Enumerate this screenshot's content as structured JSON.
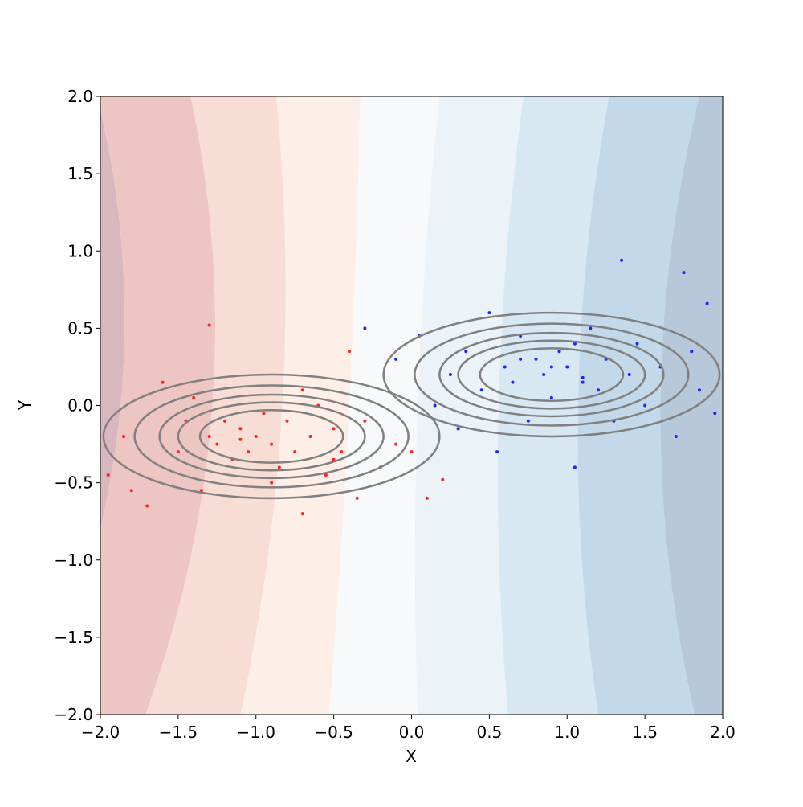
{
  "chart_data": {
    "type": "scatter",
    "xlabel": "X",
    "ylabel": "Y",
    "xlim": [
      -2.0,
      2.0
    ],
    "ylim": [
      -2.0,
      2.0
    ],
    "xticks": [
      {
        "value": -2.0,
        "label": "−2.0"
      },
      {
        "value": -1.5,
        "label": "−1.5"
      },
      {
        "value": -1.0,
        "label": "−1.0"
      },
      {
        "value": -0.5,
        "label": "−0.5"
      },
      {
        "value": 0.0,
        "label": "0.0"
      },
      {
        "value": 0.5,
        "label": "0.5"
      },
      {
        "value": 1.0,
        "label": "1.0"
      },
      {
        "value": 1.5,
        "label": "1.5"
      },
      {
        "value": 2.0,
        "label": "2.0"
      }
    ],
    "yticks": [
      {
        "value": -2.0,
        "label": "−2.0"
      },
      {
        "value": -1.5,
        "label": "−1.5"
      },
      {
        "value": -1.0,
        "label": "−1.0"
      },
      {
        "value": -0.5,
        "label": "−0.5"
      },
      {
        "value": 0.0,
        "label": "0.0"
      },
      {
        "value": 0.5,
        "label": "0.5"
      },
      {
        "value": 1.0,
        "label": "1.0"
      },
      {
        "value": 1.5,
        "label": "1.5"
      },
      {
        "value": 2.0,
        "label": "2.0"
      }
    ],
    "contour_fill": {
      "boundary_y": [
        2.0,
        0.0,
        -2.0
      ],
      "boundaries": [
        [
          -2.02,
          -1.87,
          -2.4
        ],
        [
          -1.42,
          -1.28,
          -1.71
        ],
        [
          -0.87,
          -0.83,
          -1.1
        ],
        [
          -0.33,
          -0.4,
          -0.53
        ],
        [
          0.18,
          0.04,
          0.04
        ],
        [
          0.72,
          0.56,
          0.62
        ],
        [
          1.27,
          1.07,
          1.2
        ],
        [
          1.85,
          1.6,
          1.82
        ]
      ],
      "colors": [
        "#d9b7bf",
        "#edc6c4",
        "#f8ddd5",
        "#fdefe7",
        "#f8f9fa",
        "#ebf2f8",
        "#d7e8f3",
        "#c3d9e9",
        "#b6c8da"
      ]
    },
    "ellipses": {
      "color": "#808080",
      "items": [
        {
          "cx": -0.9,
          "cy": -0.2,
          "rx": [
            1.08,
            0.88,
            0.72,
            0.6,
            0.46
          ],
          "ry": [
            0.4,
            0.33,
            0.27,
            0.22,
            0.17
          ]
        },
        {
          "cx": 0.9,
          "cy": 0.2,
          "rx": [
            1.08,
            0.88,
            0.72,
            0.6,
            0.46
          ],
          "ry": [
            0.4,
            0.33,
            0.27,
            0.22,
            0.17
          ]
        }
      ]
    },
    "series": [
      {
        "color": "#ff2020",
        "x": [
          -1.95,
          -1.85,
          -1.7,
          -1.6,
          -1.5,
          -1.45,
          -1.4,
          -1.35,
          -1.3,
          -1.25,
          -1.2,
          -1.15,
          -1.1,
          -1.05,
          -1.0,
          -0.95,
          -0.9,
          -0.85,
          -0.8,
          -0.75,
          -0.7,
          -0.65,
          -0.6,
          -0.55,
          -0.5,
          -0.45,
          -0.4,
          -0.35,
          -0.3,
          -0.2,
          -0.1,
          0.0,
          0.1,
          0.2,
          -1.3,
          -0.9,
          -1.1,
          -0.7,
          -0.5,
          -1.8
        ],
        "y": [
          -0.45,
          -0.2,
          -0.65,
          0.15,
          -0.3,
          -0.1,
          0.05,
          -0.55,
          0.52,
          -0.25,
          -0.1,
          -0.35,
          -0.15,
          -0.3,
          -0.2,
          -0.05,
          -0.25,
          -0.4,
          -0.1,
          -0.3,
          -0.7,
          -0.2,
          0.0,
          -0.45,
          -0.15,
          -0.3,
          0.35,
          -0.6,
          -0.1,
          -0.4,
          -0.25,
          -0.3,
          -0.6,
          -0.48,
          -0.2,
          -0.5,
          -0.22,
          0.1,
          -0.35,
          -0.55
        ]
      },
      {
        "color": "#2020ff",
        "x": [
          -0.3,
          -0.1,
          0.05,
          0.15,
          0.25,
          0.35,
          0.45,
          0.5,
          0.55,
          0.6,
          0.65,
          0.7,
          0.75,
          0.8,
          0.85,
          0.9,
          0.95,
          1.0,
          1.05,
          1.1,
          1.15,
          1.2,
          1.25,
          1.3,
          1.35,
          1.4,
          1.45,
          1.5,
          1.6,
          1.7,
          1.75,
          1.85,
          1.9,
          1.95,
          0.7,
          0.9,
          1.1,
          1.05,
          0.3,
          1.8
        ],
        "y": [
          0.5,
          0.3,
          0.45,
          0.0,
          0.2,
          0.35,
          0.1,
          0.6,
          -0.3,
          0.25,
          0.15,
          0.45,
          -0.1,
          0.3,
          0.2,
          0.05,
          0.35,
          0.25,
          -0.4,
          0.15,
          0.5,
          0.1,
          0.3,
          -0.1,
          0.94,
          0.2,
          0.4,
          0.0,
          0.25,
          -0.2,
          0.86,
          0.1,
          0.66,
          -0.05,
          0.3,
          0.25,
          0.18,
          0.4,
          -0.15,
          0.35
        ]
      }
    ]
  }
}
